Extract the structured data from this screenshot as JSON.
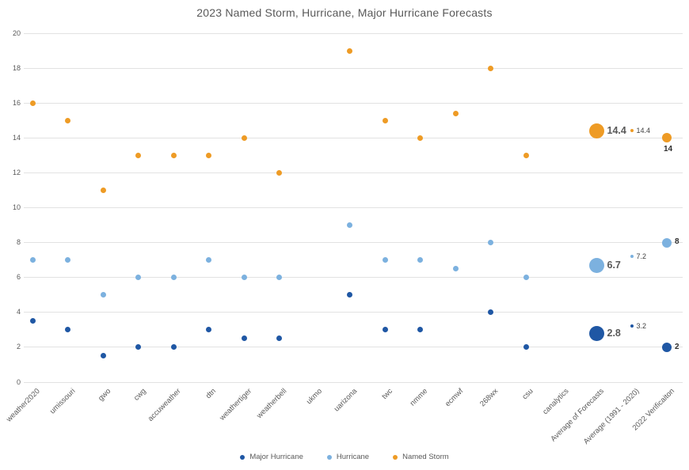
{
  "title": "2023 Named Storm, Hurricane, Major Hurricane Forecasts",
  "colors": {
    "major_hurricane": "#1f57a4",
    "hurricane": "#7cb1df",
    "named_storm": "#ee9b25",
    "gridline": "#e2e2e2",
    "text_gray": "#595959"
  },
  "chart_data": {
    "type": "scatter",
    "title": "2023 Named Storm, Hurricane, Major Hurricane Forecasts",
    "grid": "horizontal",
    "legend_position": "bottom",
    "ylim": [
      0,
      20
    ],
    "y_ticks": [
      0,
      2,
      4,
      6,
      8,
      10,
      12,
      14,
      16,
      18,
      20
    ],
    "categories": [
      "weather2020",
      "umissouri",
      "gwo",
      "cwg",
      "accuweather",
      "dtn",
      "weathertiger",
      "weatherbell",
      "ukmo",
      "uarizona",
      "twc",
      "nmme",
      "ecmwf",
      "268wx",
      "csu",
      "canalytics",
      "Average of Forecasts",
      "Average (1991 - 2020)",
      "2022 Verificaiton"
    ],
    "series": [
      {
        "name": "Major Hurricane",
        "color": "#1f57a4",
        "values": [
          3.5,
          3,
          1.5,
          2,
          2,
          3,
          2.5,
          2.5,
          null,
          5,
          3,
          3,
          null,
          4,
          2,
          null,
          2.8,
          3.2,
          2
        ]
      },
      {
        "name": "Hurricane",
        "color": "#7cb1df",
        "values": [
          7,
          7,
          5,
          6,
          6,
          7,
          6,
          6,
          null,
          9,
          7,
          7,
          6.5,
          8,
          6,
          null,
          6.7,
          7.2,
          8
        ]
      },
      {
        "name": "Named Storm",
        "color": "#ee9b25",
        "values": [
          16,
          15,
          11,
          13,
          13,
          13,
          14,
          12,
          null,
          19,
          15,
          14,
          15.4,
          18,
          13,
          null,
          14.4,
          14.4,
          14
        ]
      }
    ],
    "marker_overrides": [
      {
        "category": "Average of Forecasts",
        "radius": 9.5
      },
      {
        "category": "Average (1991 - 2020)",
        "radius": 2
      },
      {
        "category": "2022 Verificaiton",
        "radius": 6
      }
    ],
    "point_labels": [
      {
        "series": "Named Storm",
        "category": "Average of Forecasts",
        "text": "14.4",
        "style": "large",
        "placement": "right"
      },
      {
        "series": "Named Storm",
        "category": "Average (1991 - 2020)",
        "text": "14.4",
        "style": "small",
        "placement": "right"
      },
      {
        "series": "Named Storm",
        "category": "2022 Verificaiton",
        "text": "14",
        "style": "bold",
        "placement": "below"
      },
      {
        "series": "Hurricane",
        "category": "Average of Forecasts",
        "text": "6.7",
        "style": "large",
        "placement": "right"
      },
      {
        "series": "Hurricane",
        "category": "Average (1991 - 2020)",
        "text": "7.2",
        "style": "small",
        "placement": "right"
      },
      {
        "series": "Hurricane",
        "category": "2022 Verificaiton",
        "text": "8",
        "style": "bold",
        "placement": "right"
      },
      {
        "series": "Major Hurricane",
        "category": "Average of Forecasts",
        "text": "2.8",
        "style": "large",
        "placement": "right"
      },
      {
        "series": "Major Hurricane",
        "category": "Average (1991 - 2020)",
        "text": "3.2",
        "style": "small",
        "placement": "right"
      },
      {
        "series": "Major Hurricane",
        "category": "2022 Verificaiton",
        "text": "2",
        "style": "bold",
        "placement": "right"
      }
    ]
  }
}
